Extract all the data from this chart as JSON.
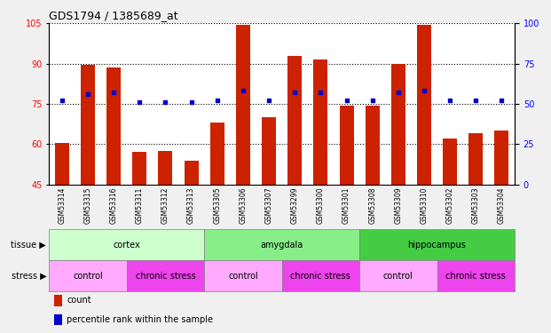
{
  "title": "GDS1794 / 1385689_at",
  "samples": [
    "GSM53314",
    "GSM53315",
    "GSM53316",
    "GSM53311",
    "GSM53312",
    "GSM53313",
    "GSM53305",
    "GSM53306",
    "GSM53307",
    "GSM53299",
    "GSM53300",
    "GSM53301",
    "GSM53308",
    "GSM53309",
    "GSM53310",
    "GSM53302",
    "GSM53303",
    "GSM53304"
  ],
  "counts": [
    60.5,
    89.5,
    88.5,
    57.0,
    57.5,
    54.0,
    68.0,
    104.5,
    70.0,
    93.0,
    91.5,
    74.5,
    74.5,
    90.0,
    104.5,
    62.0,
    64.0,
    65.0
  ],
  "percentiles": [
    52,
    56,
    57,
    51,
    51,
    51,
    52,
    58,
    52,
    57,
    57,
    52,
    52,
    57,
    58,
    52,
    52,
    52
  ],
  "ylim_left": [
    45,
    105
  ],
  "ylim_right": [
    0,
    100
  ],
  "yticks_left": [
    45,
    60,
    75,
    90,
    105
  ],
  "yticks_right": [
    0,
    25,
    50,
    75,
    100
  ],
  "bar_color": "#cc2200",
  "dot_color": "#0000cc",
  "tissue_groups": [
    {
      "label": "cortex",
      "start": 0,
      "end": 6,
      "color": "#ccffcc"
    },
    {
      "label": "amygdala",
      "start": 6,
      "end": 12,
      "color": "#88ee88"
    },
    {
      "label": "hippocampus",
      "start": 12,
      "end": 18,
      "color": "#44cc44"
    }
  ],
  "stress_groups": [
    {
      "label": "control",
      "start": 0,
      "end": 3,
      "color": "#ffaaff"
    },
    {
      "label": "chronic stress",
      "start": 3,
      "end": 6,
      "color": "#ee44ee"
    },
    {
      "label": "control",
      "start": 6,
      "end": 9,
      "color": "#ffaaff"
    },
    {
      "label": "chronic stress",
      "start": 9,
      "end": 12,
      "color": "#ee44ee"
    },
    {
      "label": "control",
      "start": 12,
      "end": 15,
      "color": "#ffaaff"
    },
    {
      "label": "chronic stress",
      "start": 15,
      "end": 18,
      "color": "#ee44ee"
    }
  ]
}
